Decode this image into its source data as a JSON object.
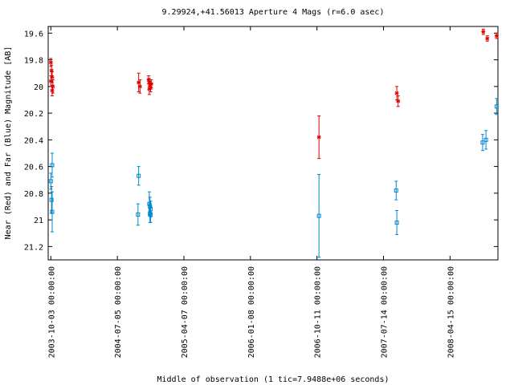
{
  "chart_data": {
    "type": "scatter",
    "title": "9.29924,+41.56013   Aperture 4 Mags (r=6.0 asec)",
    "xlabel": "Middle of observation (1 tic=7.9488e+06 seconds)",
    "ylabel": "Near (Red) and Far (Blue) Magnitude [AB]",
    "ylim": [
      21.3,
      19.55
    ],
    "y_inverted": true,
    "grid": false,
    "legend": "none",
    "y_ticks": [
      {
        "value": 19.6,
        "label": "19.6"
      },
      {
        "value": 19.8,
        "label": "19.8"
      },
      {
        "value": 20.0,
        "label": "20"
      },
      {
        "value": 20.2,
        "label": "20.2"
      },
      {
        "value": 20.4,
        "label": "20.4"
      },
      {
        "value": 20.6,
        "label": "20.6"
      },
      {
        "value": 20.8,
        "label": "20.8"
      },
      {
        "value": 21.0,
        "label": "21"
      },
      {
        "value": 21.2,
        "label": "21.2"
      }
    ],
    "x_ticks": [
      {
        "pos": 0,
        "label": "2003-10-03 00:00:00"
      },
      {
        "pos": 1,
        "label": "2004-07-05 00:00:00"
      },
      {
        "pos": 2,
        "label": "2005-04-07 00:00:00"
      },
      {
        "pos": 3,
        "label": "2006-01-08 00:00:00"
      },
      {
        "pos": 4,
        "label": "2006-10-11 00:00:00"
      },
      {
        "pos": 5,
        "label": "2007-07-14 00:00:00"
      },
      {
        "pos": 6,
        "label": "2008-04-15 00:00:00"
      }
    ],
    "xlim": [
      -0.04,
      6.72
    ],
    "series": [
      {
        "color": "#dd0000",
        "marker": "star",
        "points": [
          {
            "x": 0.0,
            "y": 19.82,
            "err": 0.03
          },
          {
            "x": 0.01,
            "y": 19.88,
            "err": 0.04
          },
          {
            "x": 0.02,
            "y": 19.93,
            "err": 0.04
          },
          {
            "x": 0.0,
            "y": 19.96,
            "err": 0.04
          },
          {
            "x": 0.03,
            "y": 20.0,
            "err": 0.05
          },
          {
            "x": 0.02,
            "y": 20.03,
            "err": 0.04
          },
          {
            "x": 1.32,
            "y": 19.97,
            "err": 0.07
          },
          {
            "x": 1.34,
            "y": 20.0,
            "err": 0.05
          },
          {
            "x": 1.47,
            "y": 19.95,
            "err": 0.03
          },
          {
            "x": 1.48,
            "y": 19.97,
            "err": 0.03
          },
          {
            "x": 1.49,
            "y": 19.99,
            "err": 0.03
          },
          {
            "x": 1.5,
            "y": 20.01,
            "err": 0.03
          },
          {
            "x": 1.48,
            "y": 20.02,
            "err": 0.04
          },
          {
            "x": 1.51,
            "y": 19.98,
            "err": 0.03
          },
          {
            "x": 4.03,
            "y": 20.38,
            "err": 0.16
          },
          {
            "x": 5.2,
            "y": 20.05,
            "err": 0.05
          },
          {
            "x": 5.22,
            "y": 20.11,
            "err": 0.04
          },
          {
            "x": 6.5,
            "y": 19.59,
            "err": 0.02
          },
          {
            "x": 6.56,
            "y": 19.64,
            "err": 0.02
          },
          {
            "x": 6.7,
            "y": 19.62,
            "err": 0.02
          }
        ]
      },
      {
        "color": "#0088cc",
        "marker": "square",
        "points": [
          {
            "x": 0.02,
            "y": 20.59,
            "err": 0.09
          },
          {
            "x": 0.0,
            "y": 20.71,
            "err": 0.06
          },
          {
            "x": 0.01,
            "y": 20.85,
            "err": 0.1
          },
          {
            "x": 0.02,
            "y": 20.94,
            "err": 0.15
          },
          {
            "x": 1.32,
            "y": 20.67,
            "err": 0.07
          },
          {
            "x": 1.31,
            "y": 20.96,
            "err": 0.08
          },
          {
            "x": 1.48,
            "y": 20.88,
            "err": 0.09
          },
          {
            "x": 1.49,
            "y": 20.9,
            "err": 0.07
          },
          {
            "x": 1.5,
            "y": 20.92,
            "err": 0.06
          },
          {
            "x": 1.49,
            "y": 20.95,
            "err": 0.07
          },
          {
            "x": 1.5,
            "y": 20.96,
            "err": 0.06
          },
          {
            "x": 4.03,
            "y": 20.97,
            "err": 0.31
          },
          {
            "x": 5.19,
            "y": 20.78,
            "err": 0.07
          },
          {
            "x": 5.2,
            "y": 21.02,
            "err": 0.09
          },
          {
            "x": 6.49,
            "y": 20.42,
            "err": 0.06
          },
          {
            "x": 6.54,
            "y": 20.4,
            "err": 0.07
          },
          {
            "x": 6.7,
            "y": 20.15,
            "err": 0.06
          }
        ]
      }
    ]
  }
}
